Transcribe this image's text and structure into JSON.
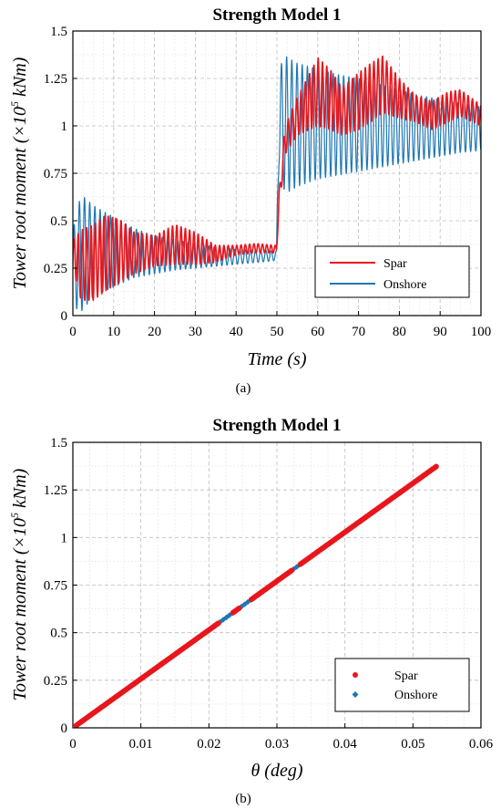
{
  "chart_data": [
    {
      "type": "line",
      "title": "Strength Model 1",
      "xlabel": "Time (s)",
      "ylabel_parts": [
        "Tower root moment (×10",
        "5",
        " kNm)"
      ],
      "caption": "(a)",
      "xlim": [
        0,
        100
      ],
      "ylim": [
        0,
        1.5
      ],
      "xticks": [
        "0",
        "10",
        "20",
        "30",
        "40",
        "50",
        "60",
        "70",
        "80",
        "90",
        "100"
      ],
      "yticks": [
        "0",
        "0.25",
        "0.5",
        "0.75",
        "1",
        "1.25",
        "1.5"
      ],
      "grid": true,
      "legend_position": "lower-right",
      "series": [
        {
          "name": "Onshore",
          "color": "#1f77b4",
          "description": "oscillating time series",
          "envelope": {
            "t": [
              0,
              2,
              5,
              10,
              15,
              20,
              25,
              30,
              35,
              40,
              45,
              49.9,
              50.5,
              52,
              55,
              60,
              65,
              70,
              75,
              80,
              85,
              90,
              95,
              100
            ],
            "upper": [
              0.45,
              0.64,
              0.58,
              0.52,
              0.46,
              0.42,
              0.4,
              0.38,
              0.36,
              0.35,
              0.345,
              0.34,
              1.3,
              1.37,
              1.33,
              1.3,
              1.27,
              1.25,
              1.22,
              1.19,
              1.16,
              1.14,
              1.12,
              1.1
            ],
            "lower": [
              0.05,
              0.02,
              0.1,
              0.15,
              0.2,
              0.22,
              0.24,
              0.25,
              0.26,
              0.27,
              0.28,
              0.29,
              0.8,
              0.64,
              0.68,
              0.72,
              0.74,
              0.76,
              0.78,
              0.8,
              0.82,
              0.84,
              0.86,
              0.87
            ]
          }
        },
        {
          "name": "Spar",
          "color": "#e8161c",
          "description": "oscillating time series",
          "envelope": {
            "t": [
              0,
              2,
              5,
              8,
              12,
              15,
              20,
              25,
              30,
              35,
              40,
              45,
              49.9,
              50.5,
              52,
              55,
              60,
              63,
              66,
              70,
              73,
              76,
              80,
              84,
              88,
              92,
              95,
              100
            ],
            "upper": [
              0.4,
              0.45,
              0.48,
              0.53,
              0.5,
              0.44,
              0.42,
              0.48,
              0.44,
              0.37,
              0.37,
              0.38,
              0.37,
              0.65,
              1.0,
              1.15,
              1.36,
              1.3,
              1.2,
              1.28,
              1.33,
              1.37,
              1.25,
              1.16,
              1.13,
              1.18,
              1.19,
              1.11
            ],
            "lower": [
              0.25,
              0.08,
              0.08,
              0.13,
              0.18,
              0.22,
              0.26,
              0.27,
              0.27,
              0.28,
              0.32,
              0.33,
              0.33,
              0.55,
              0.85,
              0.95,
              1.0,
              0.98,
              0.95,
              0.98,
              1.02,
              1.07,
              1.04,
              1.02,
              0.98,
              1.02,
              1.05,
              1.0
            ]
          }
        }
      ]
    },
    {
      "type": "scatter",
      "title": "Strength Model 1",
      "xlabel": "θ (deg)",
      "ylabel_parts": [
        "Tower root moment (×10",
        "5",
        " kNm)"
      ],
      "caption": "(b)",
      "xlim": [
        0,
        0.06
      ],
      "ylim": [
        0,
        1.5
      ],
      "xticks": [
        "0",
        "0.01",
        "0.02",
        "0.03",
        "0.04",
        "0.05",
        "0.06"
      ],
      "yticks": [
        "0",
        "0.25",
        "0.5",
        "0.75",
        "1",
        "1.25",
        "1.5"
      ],
      "grid": true,
      "legend_position": "lower-right",
      "series": [
        {
          "name": "Spar",
          "color": "#e8161c",
          "marker": "circle",
          "x_range": [
            0.0005,
            0.0535
          ],
          "slope": 25.7
        },
        {
          "name": "Onshore",
          "color": "#1f77b4",
          "marker": "diamond",
          "x_range": [
            0.0005,
            0.034
          ],
          "slope": 25.7
        }
      ]
    }
  ]
}
